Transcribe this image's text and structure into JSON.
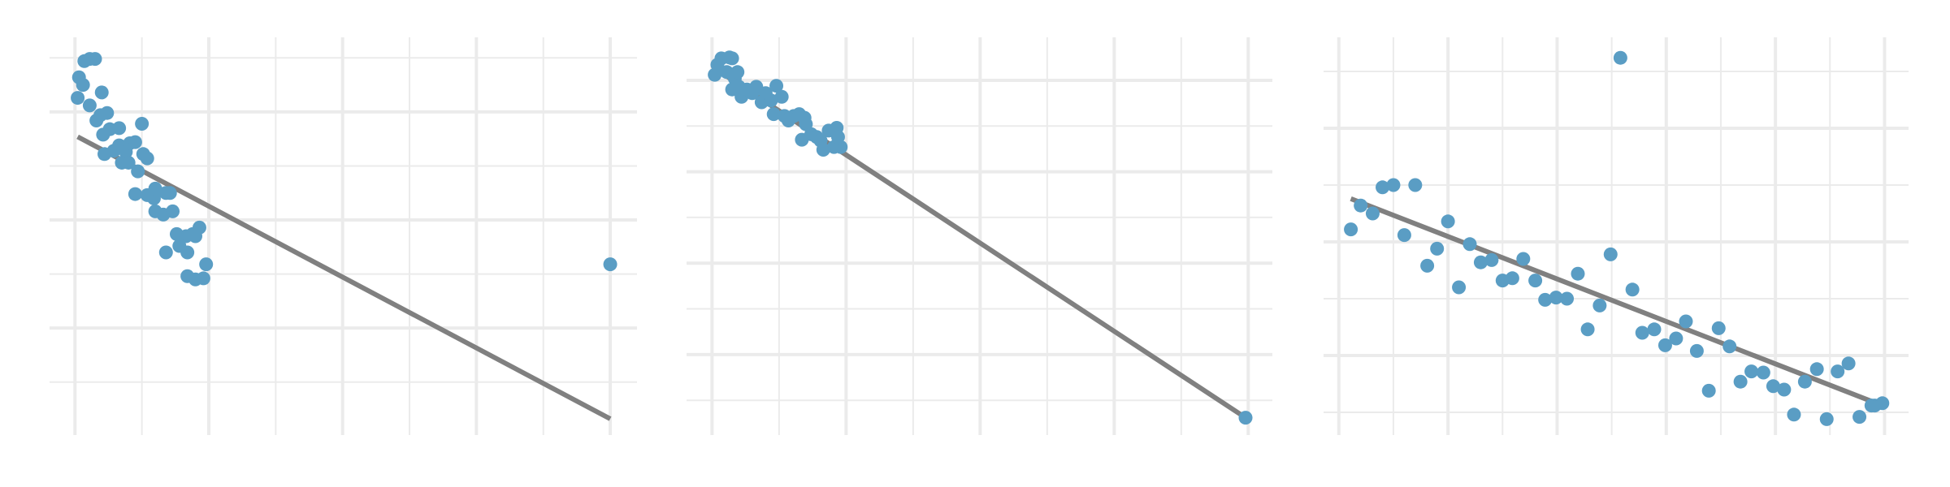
{
  "chart_data": [
    {
      "type": "scatter",
      "grid": true,
      "xlim": [
        -0.19,
        4.2
      ],
      "ylim": [
        -0.99,
        2.69
      ],
      "xticks": [
        0,
        0.5,
        1,
        1.5,
        2,
        2.5,
        3,
        3.5,
        4
      ],
      "yticks": [
        -0.5,
        0,
        0.5,
        1,
        1.5,
        2,
        2.5
      ],
      "series": [
        {
          "type": "line",
          "color": "#808080",
          "x": [
            0.02,
            4.0
          ],
          "values": [
            1.77,
            -0.84
          ]
        },
        {
          "type": "scatter",
          "color": "#5a9dc4",
          "x": [
            0.02,
            0.03,
            0.06,
            0.07,
            0.11,
            0.15,
            0.11,
            0.2,
            0.16,
            0.19,
            0.24,
            0.26,
            0.33,
            0.21,
            0.33,
            0.29,
            0.22,
            0.38,
            0.41,
            0.45,
            0.5,
            0.51,
            0.54,
            0.35,
            0.4,
            0.47,
            0.45,
            0.54,
            0.59,
            0.6,
            0.68,
            0.71,
            0.6,
            0.66,
            0.73,
            0.76,
            0.83,
            0.88,
            0.93,
            0.68,
            0.78,
            0.84,
            0.9,
            0.98,
            0.84,
            0.9,
            0.96,
            4.0
          ],
          "values": [
            2.13,
            2.32,
            2.25,
            2.47,
            2.49,
            2.49,
            2.06,
            2.18,
            1.92,
            1.97,
            1.99,
            1.84,
            1.85,
            1.79,
            1.69,
            1.64,
            1.61,
            1.63,
            1.71,
            1.72,
            1.89,
            1.61,
            1.57,
            1.53,
            1.53,
            1.45,
            1.24,
            1.23,
            1.2,
            1.29,
            1.25,
            1.25,
            1.08,
            1.05,
            1.08,
            0.87,
            0.85,
            0.87,
            0.93,
            0.7,
            0.76,
            0.7,
            0.85,
            0.59,
            0.48,
            0.45,
            0.46,
            0.59
          ]
        }
      ]
    },
    {
      "type": "scatter",
      "grid": true,
      "xlim": [
        -0.19,
        4.18
      ],
      "ylim": [
        -0.88,
        3.47
      ],
      "xticks": [
        0,
        0.5,
        1,
        1.5,
        2,
        2.5,
        3,
        3.5,
        4
      ],
      "yticks": [
        -0.5,
        0,
        0.5,
        1,
        1.5,
        2,
        2.5,
        3
      ],
      "series": [
        {
          "type": "line",
          "color": "#808080",
          "x": [
            0.02,
            3.98
          ],
          "values": [
            3.13,
            -0.69
          ]
        },
        {
          "type": "scatter",
          "color": "#5a9dc4",
          "x": [
            0.02,
            0.04,
            0.07,
            0.13,
            0.15,
            0.11,
            0.17,
            0.19,
            0.15,
            0.22,
            0.2,
            0.26,
            0.3,
            0.33,
            0.37,
            0.4,
            0.44,
            0.48,
            0.52,
            0.46,
            0.54,
            0.57,
            0.61,
            0.65,
            0.69,
            0.7,
            0.67,
            0.74,
            0.78,
            0.81,
            0.83,
            0.87,
            0.91,
            0.93,
            0.96,
            0.94,
            3.98
          ],
          "values": [
            3.06,
            3.17,
            3.24,
            3.25,
            3.24,
            3.09,
            3.02,
            3.09,
            2.9,
            2.82,
            2.93,
            2.9,
            2.86,
            2.93,
            2.76,
            2.86,
            2.78,
            2.94,
            2.82,
            2.63,
            2.61,
            2.56,
            2.61,
            2.63,
            2.59,
            2.52,
            2.35,
            2.41,
            2.38,
            2.34,
            2.24,
            2.45,
            2.27,
            2.48,
            2.27,
            2.38,
            -0.69
          ]
        }
      ]
    },
    {
      "type": "scatter",
      "grid": true,
      "xlim": [
        -0.14,
        5.22
      ],
      "ylim": [
        -0.7,
        2.8
      ],
      "xticks": [
        0,
        0.5,
        1,
        1.5,
        2,
        2.5,
        3,
        3.5,
        4,
        4.5,
        5
      ],
      "yticks": [
        -0.5,
        0,
        0.5,
        1,
        1.5,
        2,
        2.5
      ],
      "series": [
        {
          "type": "line",
          "color": "#808080",
          "x": [
            0.11,
            4.98
          ],
          "values": [
            1.38,
            -0.44
          ]
        },
        {
          "type": "scatter",
          "color": "#5a9dc4",
          "x": [
            0.11,
            0.2,
            0.31,
            0.4,
            0.5,
            0.6,
            0.7,
            0.81,
            0.9,
            1.0,
            1.1,
            1.2,
            1.3,
            1.4,
            1.5,
            1.59,
            1.69,
            1.8,
            1.89,
            1.99,
            2.09,
            2.19,
            2.28,
            2.39,
            2.49,
            2.58,
            2.69,
            2.78,
            2.89,
            2.99,
            3.09,
            3.18,
            3.28,
            3.39,
            3.48,
            3.58,
            3.68,
            3.78,
            3.89,
            3.98,
            4.08,
            4.17,
            4.27,
            4.38,
            4.47,
            4.57,
            4.67,
            4.77,
            4.88,
            4.91,
            4.98
          ],
          "values": [
            1.11,
            1.32,
            1.25,
            1.48,
            1.5,
            1.06,
            1.5,
            0.79,
            0.94,
            1.18,
            0.6,
            0.98,
            0.82,
            0.84,
            0.66,
            0.68,
            0.85,
            0.66,
            0.49,
            0.51,
            0.5,
            0.72,
            0.23,
            0.44,
            0.89,
            2.62,
            0.58,
            0.2,
            0.23,
            0.09,
            0.15,
            0.3,
            0.04,
            -0.31,
            0.24,
            0.08,
            -0.23,
            -0.14,
            -0.15,
            -0.27,
            -0.3,
            -0.52,
            -0.23,
            -0.12,
            -0.56,
            -0.14,
            -0.07,
            -0.54,
            -0.44,
            -0.44,
            -0.42
          ]
        }
      ]
    }
  ]
}
